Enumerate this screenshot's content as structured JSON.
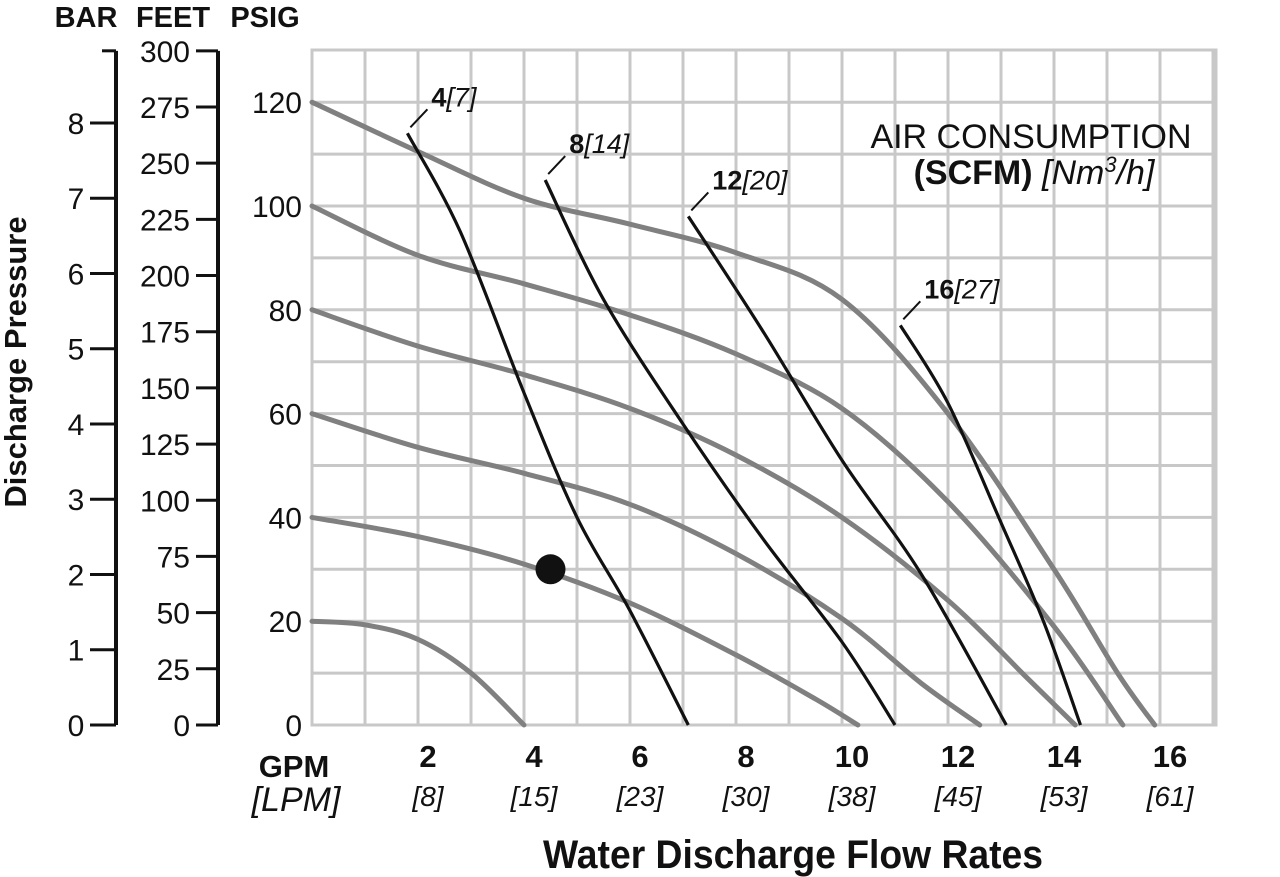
{
  "chart_data": {
    "type": "line",
    "title": "",
    "xlabel": "Water Discharge Flow Rates",
    "ylabel": "Discharge Pressure",
    "x_unit_label": "GPM",
    "x_alt_unit_label": "[LPM]",
    "xlim": [
      0,
      17
    ],
    "ylim": [
      0,
      130
    ],
    "x_ticks": [
      {
        "value": 2,
        "label": "2",
        "alt": "[8]"
      },
      {
        "value": 4,
        "label": "4",
        "alt": "[15]"
      },
      {
        "value": 6,
        "label": "6",
        "alt": "[23]"
      },
      {
        "value": 8,
        "label": "8",
        "alt": "[30]"
      },
      {
        "value": 10,
        "label": "10",
        "alt": "[38]"
      },
      {
        "value": 12,
        "label": "12",
        "alt": "[45]"
      },
      {
        "value": 14,
        "label": "14",
        "alt": "[53]"
      },
      {
        "value": 16,
        "label": "16",
        "alt": "[61]"
      }
    ],
    "grid": {
      "x_step": 1,
      "y_step": 10,
      "color": "#c8c8c8"
    },
    "y_axes": [
      {
        "header": "PSIG",
        "ticks": [
          {
            "value": 0,
            "label": "0"
          },
          {
            "value": 20,
            "label": "20"
          },
          {
            "value": 40,
            "label": "40"
          },
          {
            "value": 60,
            "label": "60"
          },
          {
            "value": 80,
            "label": "80"
          },
          {
            "value": 100,
            "label": "100"
          },
          {
            "value": 120,
            "label": "120"
          }
        ]
      },
      {
        "header": "FEET",
        "ticks": [
          {
            "value": 0,
            "label": "0"
          },
          {
            "value": 10.83,
            "label": "25"
          },
          {
            "value": 21.65,
            "label": "50"
          },
          {
            "value": 32.48,
            "label": "75"
          },
          {
            "value": 43.3,
            "label": "100"
          },
          {
            "value": 54.13,
            "label": "125"
          },
          {
            "value": 64.95,
            "label": "150"
          },
          {
            "value": 75.78,
            "label": "175"
          },
          {
            "value": 86.6,
            "label": "200"
          },
          {
            "value": 97.43,
            "label": "225"
          },
          {
            "value": 108.25,
            "label": "250"
          },
          {
            "value": 119.08,
            "label": "275"
          },
          {
            "value": 129.9,
            "label": "300"
          }
        ]
      },
      {
        "header": "BAR",
        "ticks": [
          {
            "value": 0,
            "label": "0"
          },
          {
            "value": 14.5,
            "label": "1"
          },
          {
            "value": 29,
            "label": "2"
          },
          {
            "value": 43.5,
            "label": "3"
          },
          {
            "value": 58,
            "label": "4"
          },
          {
            "value": 72.5,
            "label": "5"
          },
          {
            "value": 87,
            "label": "6"
          },
          {
            "value": 101.5,
            "label": "7"
          },
          {
            "value": 116,
            "label": "8"
          }
        ]
      }
    ],
    "performance_curves": [
      {
        "color": "#808080",
        "points": [
          [
            0,
            20
          ],
          [
            1,
            19.3
          ],
          [
            2,
            16.5
          ],
          [
            3,
            10
          ],
          [
            4,
            0
          ]
        ]
      },
      {
        "color": "#808080",
        "points": [
          [
            0,
            40
          ],
          [
            2,
            36.3
          ],
          [
            4,
            31
          ],
          [
            6,
            23.5
          ],
          [
            8,
            13.5
          ],
          [
            9.5,
            5
          ],
          [
            10.3,
            0
          ]
        ]
      },
      {
        "color": "#808080",
        "points": [
          [
            0,
            60
          ],
          [
            2,
            53.5
          ],
          [
            4,
            48.5
          ],
          [
            6,
            42.5
          ],
          [
            8,
            33
          ],
          [
            10,
            20.5
          ],
          [
            11.5,
            8
          ],
          [
            12.6,
            0
          ]
        ]
      },
      {
        "color": "#808080",
        "points": [
          [
            0,
            80
          ],
          [
            2,
            73
          ],
          [
            4,
            67.5
          ],
          [
            6,
            61
          ],
          [
            8,
            52
          ],
          [
            10,
            40
          ],
          [
            12,
            24
          ],
          [
            13.5,
            9
          ],
          [
            14.4,
            0
          ]
        ]
      },
      {
        "color": "#808080",
        "points": [
          [
            0,
            100
          ],
          [
            2,
            90.5
          ],
          [
            4,
            85
          ],
          [
            6,
            79
          ],
          [
            8,
            71.5
          ],
          [
            10,
            61
          ],
          [
            12,
            43
          ],
          [
            14,
            19
          ],
          [
            15.3,
            0
          ]
        ]
      },
      {
        "color": "#808080",
        "points": [
          [
            0,
            120
          ],
          [
            2,
            110.5
          ],
          [
            4,
            101.5
          ],
          [
            6,
            96.5
          ],
          [
            8,
            91
          ],
          [
            10,
            82
          ],
          [
            12,
            60
          ],
          [
            14,
            30
          ],
          [
            15.2,
            10
          ],
          [
            15.9,
            0
          ]
        ]
      }
    ],
    "air_consumption_lines": [
      {
        "label": "4",
        "alt": "[7]",
        "color": "#111111",
        "points": [
          [
            1.8,
            114
          ],
          [
            2.8,
            95
          ],
          [
            4,
            64
          ],
          [
            5,
            40
          ],
          [
            6,
            22
          ],
          [
            7.1,
            0
          ]
        ]
      },
      {
        "label": "8",
        "alt": "[14]",
        "color": "#111111",
        "points": [
          [
            4.4,
            105
          ],
          [
            5.5,
            82
          ],
          [
            7,
            58
          ],
          [
            8.5,
            36
          ],
          [
            10,
            16
          ],
          [
            11,
            0
          ]
        ]
      },
      {
        "label": "12",
        "alt": "[20]",
        "color": "#111111",
        "points": [
          [
            7.1,
            98
          ],
          [
            8.5,
            76
          ],
          [
            10,
            51
          ],
          [
            11.5,
            29
          ],
          [
            13.1,
            0
          ]
        ]
      },
      {
        "label": "16",
        "alt": "[27]",
        "color": "#111111",
        "points": [
          [
            11.1,
            77
          ],
          [
            12,
            62
          ],
          [
            13,
            39
          ],
          [
            13.8,
            20
          ],
          [
            14.5,
            0
          ]
        ]
      }
    ],
    "operating_point": {
      "x": 4.5,
      "y": 30
    },
    "legend": {
      "title": "AIR CONSUMPTION",
      "unit_bold": "(SCFM)",
      "unit_alt_pre": "[Nm",
      "unit_alt_sup": "3",
      "unit_alt_post": "/h]",
      "placement": "top-right"
    }
  }
}
